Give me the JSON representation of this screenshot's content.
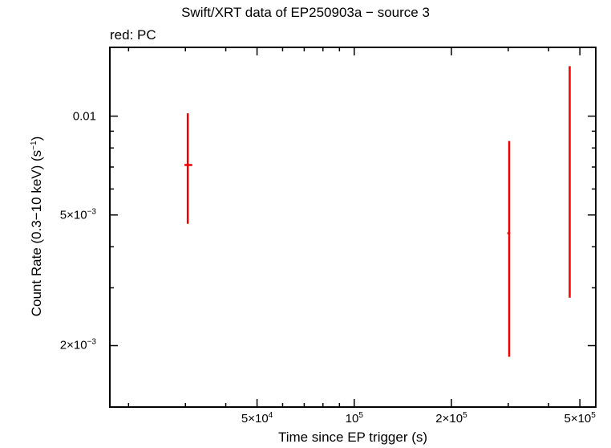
{
  "chart_data": {
    "type": "scatter",
    "title": "Swift/XRT data of EP250903a − source 3",
    "subtitle": "red: PC",
    "xlabel": "Time since EP trigger (s)",
    "ylabel_main": "Count Rate (0.3−10 keV) (s",
    "ylabel_sup": "−1",
    "ylabel_end": ")",
    "xscale": "log",
    "yscale": "log",
    "xlim": [
      17500,
      560000
    ],
    "ylim": [
      0.0013,
      0.0162
    ],
    "x_ticks": [
      {
        "value": 50000,
        "base": "5×10",
        "exp": "4"
      },
      {
        "value": 100000,
        "base": "10",
        "exp": "5"
      },
      {
        "value": 200000,
        "base": "2×10",
        "exp": "5"
      },
      {
        "value": 500000,
        "base": "5×10",
        "exp": "5"
      }
    ],
    "y_ticks": [
      {
        "value": 0.01,
        "base": "0.01",
        "exp": ""
      },
      {
        "value": 0.005,
        "base": "5×10",
        "exp": "−3"
      },
      {
        "value": 0.002,
        "base": "2×10",
        "exp": "−3"
      }
    ],
    "grid": false,
    "series": [
      {
        "color": "#ee0000",
        "points": [
          {
            "x": 30500,
            "xlo": 29800,
            "xhi": 31500,
            "y": 0.0071,
            "ylo": 0.0047,
            "yhi": 0.0102
          },
          {
            "x": 302000,
            "xlo": 298000,
            "xhi": 304000,
            "y": 0.0044,
            "ylo": 0.00185,
            "yhi": 0.0084
          },
          {
            "x": 465000,
            "xlo": 465000,
            "xhi": 465000,
            "y": null,
            "ylo": 0.0028,
            "yhi": 0.0142
          }
        ]
      }
    ]
  }
}
